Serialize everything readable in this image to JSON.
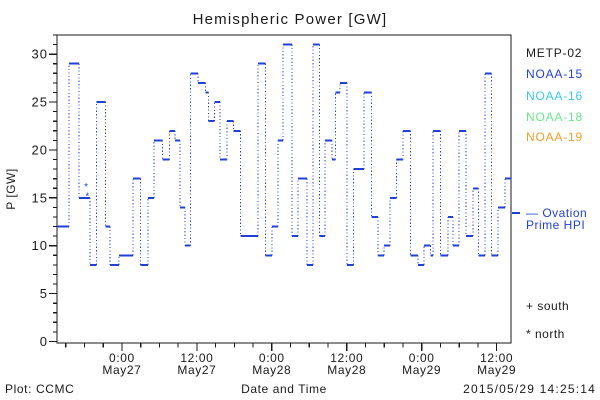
{
  "chart_data": {
    "type": "line",
    "subtype": "step-plot-satellite-hemispheric-power",
    "title": "Hemispheric Power [GW]",
    "xlabel": "Date and Time",
    "ylabel": "P [GW]",
    "ylim": [
      0,
      32
    ],
    "y_major_ticks": [
      0,
      5,
      10,
      15,
      20,
      25,
      30
    ],
    "y_minor_step_gw": 1,
    "x_range_hours_from_may27_0000": [
      -10.4,
      62.3
    ],
    "x_minor_step_hours": 3,
    "x_major_ticks": [
      {
        "hours": 0,
        "time": "0:00",
        "date": "May27"
      },
      {
        "hours": 12,
        "time": "12:00",
        "date": "May27"
      },
      {
        "hours": 24,
        "time": "0:00",
        "date": "May28"
      },
      {
        "hours": 36,
        "time": "12:00",
        "date": "May28"
      },
      {
        "hours": 48,
        "time": "0:00",
        "date": "May29"
      },
      {
        "hours": 60,
        "time": "12:00",
        "date": "May29"
      }
    ],
    "series": [
      {
        "name": "Ovation Prime HPI",
        "color": "#2141d6",
        "style": "solid horizontal steps, dotted vertical risers",
        "steps_hours_gw": [
          [
            -10.4,
            12
          ],
          [
            -8.5,
            29
          ],
          [
            -6.9,
            15
          ],
          [
            -5.1,
            8
          ],
          [
            -4.1,
            25
          ],
          [
            -2.6,
            12
          ],
          [
            -1.9,
            8
          ],
          [
            -0.5,
            9
          ],
          [
            1.8,
            17
          ],
          [
            3.0,
            8
          ],
          [
            4.2,
            15
          ],
          [
            5.1,
            21
          ],
          [
            6.5,
            19
          ],
          [
            7.6,
            22
          ],
          [
            8.5,
            21
          ],
          [
            9.3,
            14
          ],
          [
            10.1,
            10
          ],
          [
            11.0,
            28
          ],
          [
            12.2,
            27
          ],
          [
            13.4,
            26
          ],
          [
            13.9,
            23
          ],
          [
            14.8,
            25
          ],
          [
            15.7,
            19
          ],
          [
            16.8,
            23
          ],
          [
            17.9,
            22
          ],
          [
            19.0,
            11
          ],
          [
            21.8,
            29
          ],
          [
            23.0,
            9
          ],
          [
            24.0,
            12
          ],
          [
            25.0,
            21
          ],
          [
            25.8,
            31
          ],
          [
            27.2,
            11
          ],
          [
            28.2,
            17
          ],
          [
            29.6,
            8
          ],
          [
            30.6,
            31
          ],
          [
            31.6,
            11
          ],
          [
            32.5,
            21
          ],
          [
            33.6,
            19
          ],
          [
            34.2,
            26
          ],
          [
            34.9,
            27
          ],
          [
            36.0,
            8
          ],
          [
            37.1,
            18
          ],
          [
            38.8,
            26
          ],
          [
            40.0,
            13
          ],
          [
            41.0,
            9
          ],
          [
            42.0,
            10
          ],
          [
            42.9,
            15
          ],
          [
            44.0,
            19
          ],
          [
            45.0,
            22
          ],
          [
            46.2,
            9
          ],
          [
            47.4,
            8
          ],
          [
            48.4,
            10
          ],
          [
            49.4,
            9
          ],
          [
            49.8,
            22
          ],
          [
            51.0,
            9
          ],
          [
            52.2,
            13
          ],
          [
            53.0,
            10
          ],
          [
            54.0,
            22
          ],
          [
            55.1,
            11
          ],
          [
            56.2,
            16
          ],
          [
            57.1,
            9
          ],
          [
            58.1,
            28
          ],
          [
            59.2,
            9
          ],
          [
            60.2,
            14
          ],
          [
            61.3,
            17
          ]
        ],
        "end_hours": 62.3
      }
    ],
    "north_markers_hours_gw": [
      [
        -5.75,
        16.2
      ],
      [
        -5.55,
        15.2
      ]
    ],
    "grid": "off",
    "legend_position": "right-outside"
  },
  "legend": {
    "satellites": [
      {
        "label": "METP-02",
        "color": "#1a1a1a"
      },
      {
        "label": "NOAA-15",
        "color": "#2141d6"
      },
      {
        "label": "NOAA-16",
        "color": "#38c9ec"
      },
      {
        "label": "NOAA-18",
        "color": "#6ae98e"
      },
      {
        "label": "NOAA-19",
        "color": "#f99b26"
      }
    ],
    "ovation_color": "#2141d6",
    "ovation_label_line1": "— Ovation",
    "ovation_label_line2": "Prime HPI",
    "south_marker_label": "+ south",
    "north_marker_label": "* north"
  },
  "footer": {
    "plot_credit": "Plot: CCMC",
    "timestamp": "2015/05/29 14:25:14"
  }
}
